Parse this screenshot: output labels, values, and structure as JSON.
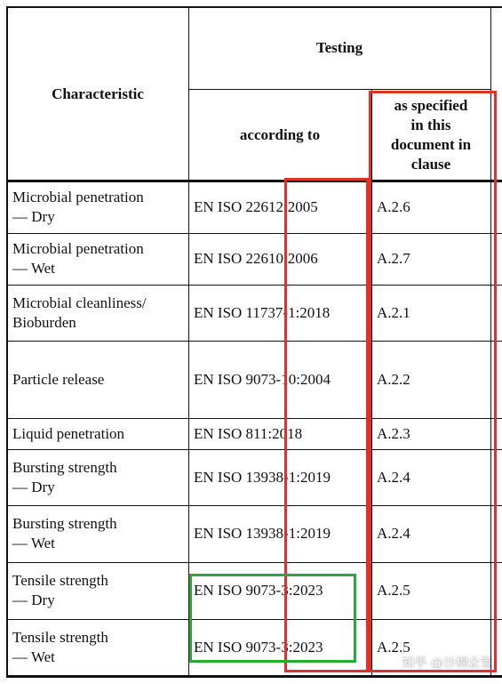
{
  "header": {
    "characteristic": "Characteristic",
    "testing": "Testing",
    "according_to": "according to",
    "as_specified": "as specified\nin this\ndocument in\nclause"
  },
  "rows": [
    [
      "Microbial penetration\n— Dry",
      "EN ISO 22612:2005",
      "A.2.6"
    ],
    [
      "Microbial penetration\n— Wet",
      "EN ISO 22610:2006",
      "A.2.7"
    ],
    [
      "Microbial cleanliness/\nBioburden",
      "EN ISO 11737-1:2018",
      "A.2.1"
    ],
    [
      "Particle release",
      "EN ISO 9073-10:2004",
      "A.2.2"
    ],
    [
      "Liquid penetration",
      "EN ISO 811:2018",
      "A.2.3"
    ],
    [
      "Bursting strength\n— Dry",
      "EN ISO 13938-1:2019",
      "A.2.4"
    ],
    [
      "Bursting strength\n— Wet",
      "EN ISO 13938-1:2019",
      "A.2.4"
    ],
    [
      "Tensile strength\n— Dry",
      "EN ISO 9073-3:2023",
      "A.2.5"
    ],
    [
      "Tensile strength\n— Wet",
      "EN ISO 9073-3:2023",
      "A.2.5"
    ]
  ],
  "watermark": "知乎 @沙棉企管"
}
